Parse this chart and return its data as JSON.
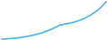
{
  "values": [
    100,
    130,
    165,
    205,
    255,
    315,
    390,
    475,
    570,
    680,
    810,
    960,
    1130,
    1320,
    1540,
    1790,
    1870,
    1960,
    2060,
    2180,
    2330,
    2510,
    2730,
    2990,
    3290,
    3640,
    4060,
    4560
  ],
  "line_color": "#4db3e6",
  "linewidth": 1.2,
  "background_color": "#ffffff",
  "figsize": [
    1.2,
    0.45
  ],
  "dpi": 100
}
